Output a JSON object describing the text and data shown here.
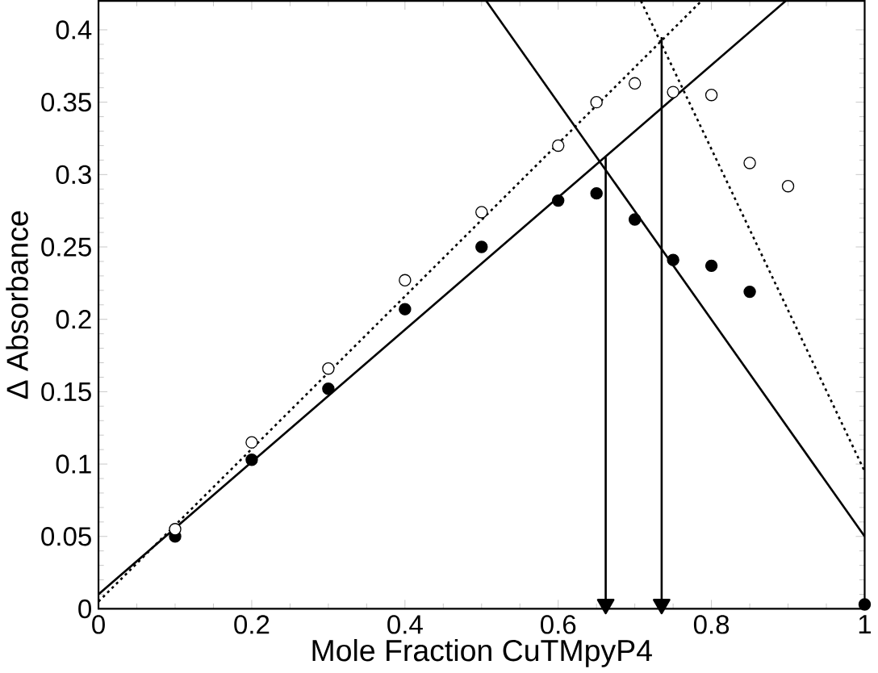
{
  "chart_data": {
    "type": "scatter",
    "xlabel": "Mole Fraction CuTMpyP4",
    "ylabel": "Δ Absorbance",
    "xlim": [
      0,
      1
    ],
    "ylim": [
      0,
      0.42
    ],
    "xticks": [
      0,
      0.2,
      0.4,
      0.6,
      0.8,
      1
    ],
    "yticks": [
      0,
      0.05,
      0.1,
      0.15,
      0.2,
      0.25,
      0.3,
      0.35,
      0.4
    ],
    "grid": false,
    "series": [
      {
        "marker": "circle",
        "color": "#000000",
        "x": [
          0.1,
          0.2,
          0.3,
          0.4,
          0.5,
          0.6,
          0.65,
          0.7,
          0.75,
          0.8,
          0.85,
          1.0
        ],
        "values": [
          0.05,
          0.103,
          0.152,
          0.207,
          0.25,
          0.282,
          0.287,
          0.269,
          0.241,
          0.237,
          0.219,
          0.003
        ]
      },
      {
        "marker": "circle",
        "color": "#ffffff",
        "x": [
          0.1,
          0.2,
          0.3,
          0.4,
          0.5,
          0.6,
          0.65,
          0.7,
          0.75,
          0.8,
          0.85,
          0.9
        ],
        "values": [
          0.055,
          0.115,
          0.166,
          0.227,
          0.274,
          0.32,
          0.35,
          0.363,
          0.357,
          0.355,
          0.308,
          0.292
        ]
      },
      {
        "type": "line",
        "line_style": "solid",
        "color": "#000000",
        "x": [
          0,
          0.897
        ],
        "values": [
          0.01,
          0.42
        ]
      },
      {
        "type": "line",
        "line_style": "solid",
        "color": "#000000",
        "x": [
          0.506,
          1
        ],
        "values": [
          0.42,
          0.05
        ]
      },
      {
        "type": "line",
        "line_style": "dotted",
        "color": "#000000",
        "x": [
          0,
          0.787
        ],
        "values": [
          0.005,
          0.42
        ]
      },
      {
        "type": "line",
        "line_style": "dotted",
        "color": "#000000",
        "x": [
          0.708,
          1
        ],
        "values": [
          0.42,
          0.095
        ]
      },
      {
        "type": "line",
        "line_style": "solid",
        "marker": "triangle",
        "color": "#000000",
        "x": [
          0.662,
          0.662
        ],
        "values": [
          0.312,
          0
        ]
      },
      {
        "type": "line",
        "line_style": "solid",
        "marker": "triangle",
        "color": "#000000",
        "x": [
          0.735,
          0.735
        ],
        "values": [
          0.395,
          0
        ]
      }
    ]
  }
}
